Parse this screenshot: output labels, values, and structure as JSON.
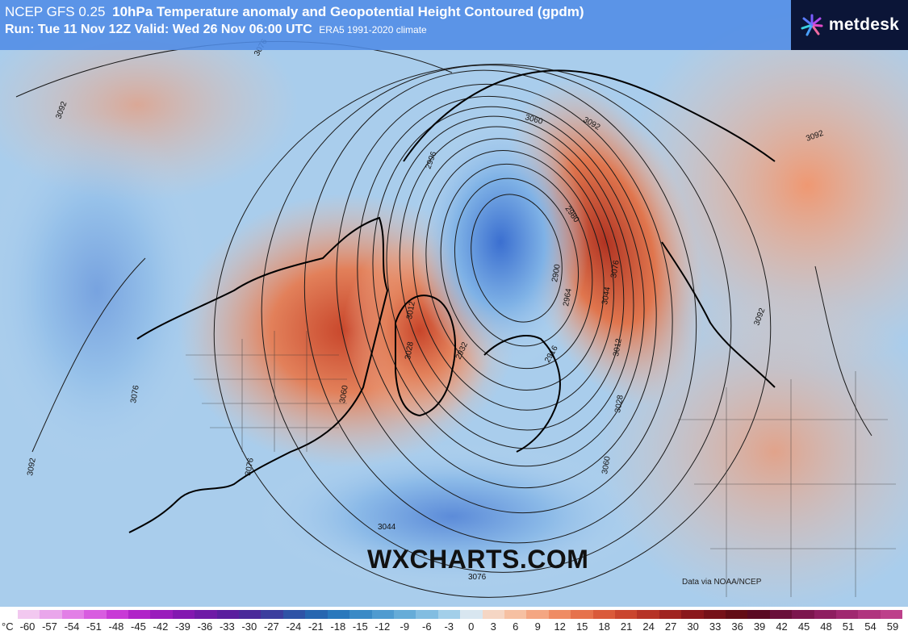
{
  "header": {
    "model": "NCEP GFS 0.25",
    "parameter": "10hPa Temperature anomaly and Geopotential Height Contoured (gpdm)",
    "run_label": "Run: Tue 11 Nov 12Z Valid: Wed 26 Nov 06:00 UTC",
    "climate_label": "ERA5 1991-2020 climate"
  },
  "brand": {
    "name": "metdesk"
  },
  "watermark": "WXCHARTS.COM",
  "credit": "Data via NOAA/NCEP",
  "contour_labels": [
    "3092",
    "3076",
    "3092",
    "3060",
    "3092",
    "3092",
    "3076",
    "3044",
    "3076",
    "3092",
    "2996",
    "2980",
    "2900",
    "2964",
    "3044",
    "3076",
    "3012",
    "3028",
    "2932",
    "2916",
    "3012",
    "3060",
    "3028",
    "3076",
    "3060",
    "3092"
  ],
  "legend": {
    "unit": "°C",
    "ticks": [
      "-60",
      "-57",
      "-54",
      "-51",
      "-48",
      "-45",
      "-42",
      "-39",
      "-36",
      "-33",
      "-30",
      "-27",
      "-24",
      "-21",
      "-18",
      "-15",
      "-12",
      "-9",
      "-6",
      "-3",
      "0",
      "3",
      "6",
      "9",
      "12",
      "15",
      "18",
      "21",
      "24",
      "27",
      "30",
      "33",
      "36",
      "39",
      "42",
      "45",
      "48",
      "51",
      "54",
      "59"
    ],
    "colors": [
      "#f2c8f0",
      "#e9a6eb",
      "#e27fe6",
      "#d85ce0",
      "#c83ad6",
      "#b024c8",
      "#9a1cbc",
      "#8318b0",
      "#6e1aa6",
      "#5a1e9e",
      "#4a2a9a",
      "#3c3e9e",
      "#2f53a6",
      "#2766b0",
      "#2a78bc",
      "#3a8ac6",
      "#4f9bd0",
      "#66acd8",
      "#82bde1",
      "#a3cfe9",
      "#d8e6f0",
      "#f5d6c4",
      "#f6c0a2",
      "#f4a682",
      "#ef8c64",
      "#e6724c",
      "#da5a3a",
      "#ca452e",
      "#b63326",
      "#a02420",
      "#8a181c",
      "#761219",
      "#630d16",
      "#5a0a22",
      "#6a0f3a",
      "#7c164e",
      "#8e1e60",
      "#a02870",
      "#b0347e",
      "#bd408a"
    ]
  }
}
